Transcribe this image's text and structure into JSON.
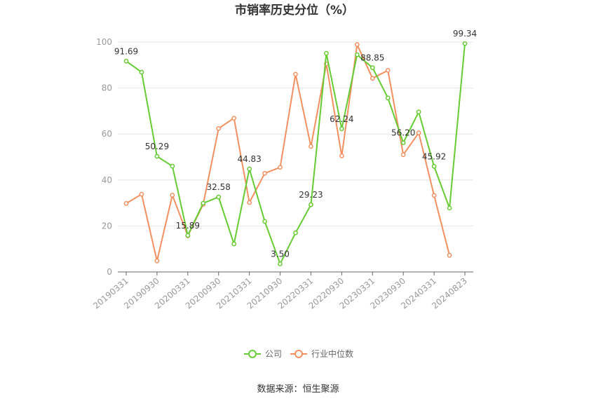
{
  "chart_data": {
    "type": "line",
    "title": "市销率历史分位（%）",
    "ylim": [
      0,
      100
    ],
    "yticks": [
      0,
      20,
      40,
      60,
      80,
      100
    ],
    "grid": true,
    "legend_position": "bottom",
    "x_tick_labels": [
      "20190331",
      "20190930",
      "20200331",
      "20200930",
      "20210331",
      "20210930",
      "20220331",
      "20220930",
      "20230331",
      "20230930",
      "20240331",
      "20240823"
    ],
    "series": [
      {
        "name": "公司",
        "color": "#66cc33",
        "values": [
          91.69,
          86.9,
          50.29,
          46.0,
          15.89,
          29.9,
          32.58,
          12.2,
          44.83,
          22.0,
          3.5,
          17.0,
          29.23,
          95.1,
          62.24,
          94.5,
          88.85,
          75.7,
          56.2,
          69.6,
          45.92,
          27.8,
          99.34
        ]
      },
      {
        "name": "行业中位数",
        "color": "#f49060",
        "values": [
          29.8,
          33.8,
          4.8,
          33.4,
          15.7,
          29.4,
          62.4,
          66.9,
          30.2,
          42.9,
          45.5,
          86.0,
          54.6,
          90.5,
          50.5,
          98.9,
          84.2,
          87.7,
          51.0,
          60.5,
          33.3,
          7.2,
          null
        ]
      }
    ],
    "data_labels": [
      {
        "series": 0,
        "index": 0,
        "text": "91.69"
      },
      {
        "series": 0,
        "index": 2,
        "text": "50.29"
      },
      {
        "series": 0,
        "index": 4,
        "text": "15.89"
      },
      {
        "series": 0,
        "index": 6,
        "text": "32.58"
      },
      {
        "series": 0,
        "index": 8,
        "text": "44.83"
      },
      {
        "series": 0,
        "index": 10,
        "text": "3.50"
      },
      {
        "series": 0,
        "index": 12,
        "text": "29.23"
      },
      {
        "series": 0,
        "index": 14,
        "text": "62.24"
      },
      {
        "series": 0,
        "index": 16,
        "text": "88.85"
      },
      {
        "series": 0,
        "index": 18,
        "text": "56.20"
      },
      {
        "series": 0,
        "index": 20,
        "text": "45.92"
      },
      {
        "series": 0,
        "index": 22,
        "text": "99.34"
      }
    ]
  },
  "source_text": "数据来源：恒生聚源"
}
